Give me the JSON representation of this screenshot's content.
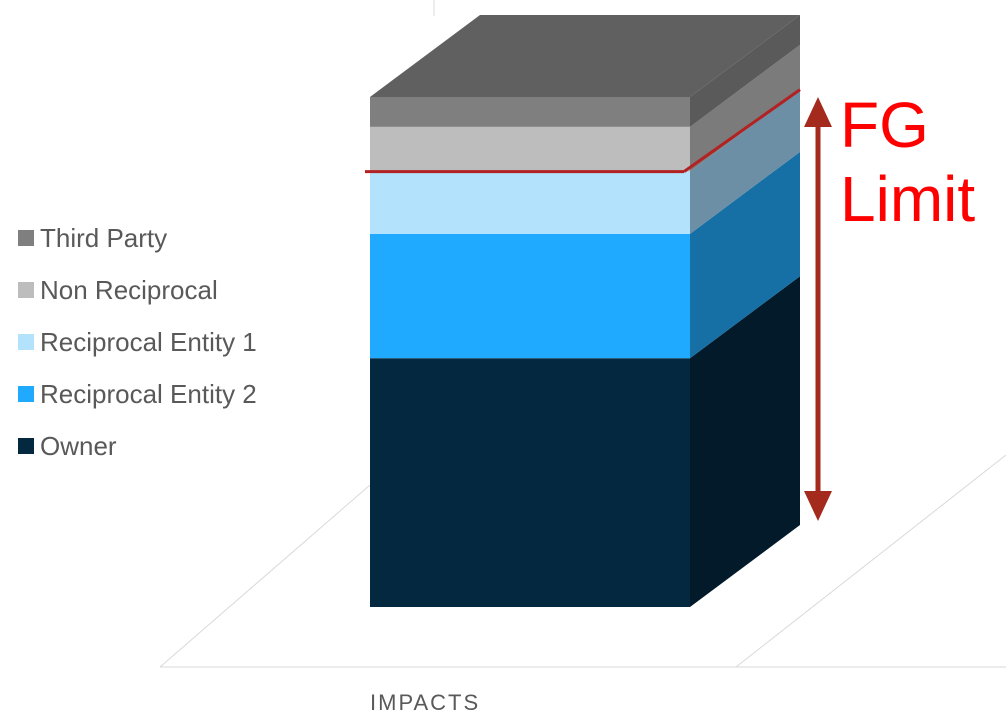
{
  "chart_data": {
    "type": "bar",
    "stacked": true,
    "three_d": true,
    "categories": [
      "IMPACTS"
    ],
    "series": [
      {
        "name": "Owner",
        "values": [
          100
        ],
        "color": "#03283f",
        "side_color": "#021a29",
        "swatch": "#03283f"
      },
      {
        "name": "Reciprocal Entity 2",
        "values": [
          50
        ],
        "color": "#1fa9ff",
        "side_color": "#1670a5",
        "swatch": "#1fa9ff"
      },
      {
        "name": "Reciprocal Entity 1",
        "values": [
          25
        ],
        "color": "#b3e2fd",
        "side_color": "#6d8fa5",
        "swatch": "#b3e2fd"
      },
      {
        "name": "Non Reciprocal",
        "values": [
          18
        ],
        "color": "#bdbdbd",
        "side_color": "#7b7b7b",
        "swatch": "#bdbdbd"
      },
      {
        "name": "Third Party",
        "values": [
          12
        ],
        "color": "#7f7f7f",
        "side_color": "#5a5a5a",
        "swatch": "#7f7f7f"
      }
    ],
    "top_color": "#606060",
    "legend_position": "left",
    "gridlines": true,
    "xlabel": "",
    "ylabel": "",
    "annotation": {
      "label": "FG Limit",
      "color": "#ff0000",
      "arrow_color": "#a42a1e",
      "line_color": "#b22222"
    }
  },
  "x_axis_label": "IMPACTS",
  "annotation_lines": [
    "FG",
    "Limit"
  ],
  "legend": [
    {
      "label": "Third Party",
      "color": "#7f7f7f"
    },
    {
      "label": "Non Reciprocal",
      "color": "#bdbdbd"
    },
    {
      "label": "Reciprocal Entity 1",
      "color": "#b3e2fd"
    },
    {
      "label": "Reciprocal Entity 2",
      "color": "#1fa9ff"
    },
    {
      "label": "Owner",
      "color": "#03283f"
    }
  ]
}
